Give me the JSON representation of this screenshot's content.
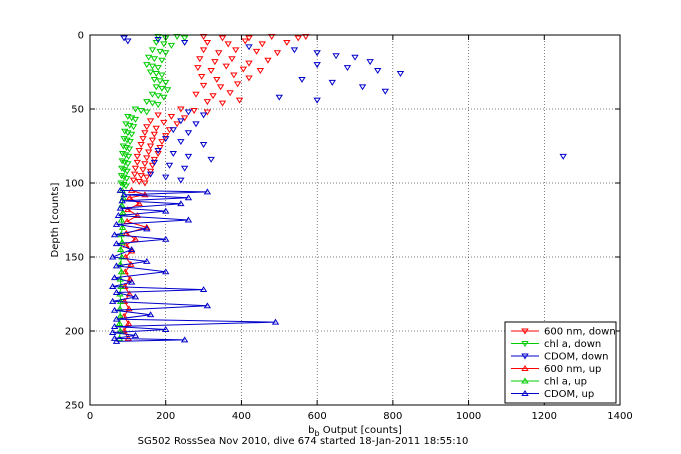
{
  "chart_data": {
    "type": "scatter",
    "title": "",
    "xlabel_main": "b",
    "xlabel_sub": "b",
    "xlabel_rest": " Output [counts]",
    "ylabel": "Depth [counts]",
    "caption": "SG502 RossSea Nov 2010, dive 674 started 18-Jan-2011 18:55:10",
    "xlim": [
      0,
      1400
    ],
    "ylim": [
      0,
      250
    ],
    "y_reversed": true,
    "grid": true,
    "legend_position": "bottom-right",
    "xticks": [
      0,
      200,
      400,
      600,
      800,
      1000,
      1200,
      1400
    ],
    "yticks": [
      0,
      50,
      100,
      150,
      200,
      250
    ],
    "series": [
      {
        "name": "600 nm, down",
        "color": "#ff0000",
        "marker": "triangle-down",
        "line": false,
        "points": [
          [
            300,
            1
          ],
          [
            350,
            2
          ],
          [
            420,
            2
          ],
          [
            480,
            1
          ],
          [
            550,
            2
          ],
          [
            570,
            1
          ],
          [
            310,
            5
          ],
          [
            365,
            6
          ],
          [
            410,
            4
          ],
          [
            455,
            6
          ],
          [
            520,
            5
          ],
          [
            300,
            10
          ],
          [
            340,
            12
          ],
          [
            385,
            10
          ],
          [
            440,
            11
          ],
          [
            495,
            12
          ],
          [
            290,
            16
          ],
          [
            330,
            18
          ],
          [
            375,
            16
          ],
          [
            420,
            19
          ],
          [
            470,
            17
          ],
          [
            285,
            22
          ],
          [
            320,
            24
          ],
          [
            360,
            21
          ],
          [
            405,
            23
          ],
          [
            450,
            24
          ],
          [
            295,
            28
          ],
          [
            335,
            30
          ],
          [
            380,
            27
          ],
          [
            420,
            29
          ],
          [
            300,
            34
          ],
          [
            345,
            35
          ],
          [
            390,
            33
          ],
          [
            280,
            40
          ],
          [
            325,
            41
          ],
          [
            370,
            39
          ],
          [
            310,
            45
          ],
          [
            350,
            46
          ],
          [
            395,
            44
          ],
          [
            240,
            50
          ],
          [
            275,
            51
          ],
          [
            310,
            52
          ],
          [
            180,
            54
          ],
          [
            215,
            55
          ],
          [
            250,
            56
          ],
          [
            160,
            58
          ],
          [
            195,
            59
          ],
          [
            230,
            60
          ],
          [
            150,
            62
          ],
          [
            175,
            63
          ],
          [
            210,
            64
          ],
          [
            145,
            66
          ],
          [
            170,
            67
          ],
          [
            200,
            68
          ],
          [
            140,
            70
          ],
          [
            165,
            71
          ],
          [
            190,
            72
          ],
          [
            135,
            74
          ],
          [
            160,
            75
          ],
          [
            185,
            76
          ],
          [
            130,
            78
          ],
          [
            155,
            79
          ],
          [
            180,
            80
          ],
          [
            125,
            82
          ],
          [
            150,
            83
          ],
          [
            170,
            84
          ],
          [
            125,
            86
          ],
          [
            145,
            87
          ],
          [
            165,
            88
          ],
          [
            120,
            90
          ],
          [
            140,
            91
          ],
          [
            160,
            92
          ],
          [
            118,
            94
          ],
          [
            135,
            95
          ],
          [
            150,
            96
          ],
          [
            115,
            98
          ],
          [
            130,
            99
          ],
          [
            145,
            100
          ]
        ]
      },
      {
        "name": "chl a, down",
        "color": "#00cc00",
        "marker": "triangle-down",
        "line": false,
        "points": [
          [
            180,
            1
          ],
          [
            200,
            2
          ],
          [
            230,
            1
          ],
          [
            250,
            2
          ],
          [
            175,
            5
          ],
          [
            195,
            6
          ],
          [
            215,
            7
          ],
          [
            165,
            10
          ],
          [
            185,
            11
          ],
          [
            200,
            12
          ],
          [
            155,
            15
          ],
          [
            170,
            16
          ],
          [
            190,
            17
          ],
          [
            150,
            20
          ],
          [
            165,
            21
          ],
          [
            180,
            22
          ],
          [
            160,
            25
          ],
          [
            175,
            26
          ],
          [
            190,
            27
          ],
          [
            170,
            30
          ],
          [
            185,
            31
          ],
          [
            200,
            32
          ],
          [
            175,
            35
          ],
          [
            190,
            36
          ],
          [
            205,
            37
          ],
          [
            165,
            40
          ],
          [
            180,
            41
          ],
          [
            195,
            42
          ],
          [
            150,
            45
          ],
          [
            165,
            46
          ],
          [
            180,
            47
          ],
          [
            120,
            50
          ],
          [
            135,
            51
          ],
          [
            150,
            52
          ],
          [
            100,
            55
          ],
          [
            110,
            56
          ],
          [
            120,
            57
          ],
          [
            95,
            60
          ],
          [
            105,
            61
          ],
          [
            115,
            62
          ],
          [
            92,
            65
          ],
          [
            100,
            66
          ],
          [
            110,
            67
          ],
          [
            90,
            70
          ],
          [
            98,
            71
          ],
          [
            106,
            72
          ],
          [
            88,
            75
          ],
          [
            96,
            76
          ],
          [
            104,
            77
          ],
          [
            86,
            80
          ],
          [
            94,
            81
          ],
          [
            102,
            82
          ],
          [
            85,
            85
          ],
          [
            92,
            86
          ],
          [
            100,
            87
          ],
          [
            84,
            90
          ],
          [
            91,
            91
          ],
          [
            98,
            92
          ],
          [
            83,
            95
          ],
          [
            90,
            96
          ],
          [
            97,
            97
          ],
          [
            82,
            100
          ],
          [
            89,
            101
          ],
          [
            95,
            102
          ]
        ]
      },
      {
        "name": "CDOM, down",
        "color": "#0000cc",
        "marker": "triangle-down",
        "line": false,
        "points": [
          [
            90,
            2
          ],
          [
            100,
            4
          ],
          [
            180,
            3
          ],
          [
            250,
            5
          ],
          [
            420,
            8
          ],
          [
            540,
            10
          ],
          [
            600,
            12
          ],
          [
            650,
            14
          ],
          [
            700,
            15
          ],
          [
            740,
            18
          ],
          [
            600,
            20
          ],
          [
            680,
            22
          ],
          [
            760,
            24
          ],
          [
            820,
            26
          ],
          [
            560,
            30
          ],
          [
            640,
            32
          ],
          [
            720,
            35
          ],
          [
            780,
            38
          ],
          [
            500,
            42
          ],
          [
            600,
            44
          ],
          [
            260,
            52
          ],
          [
            300,
            54
          ],
          [
            240,
            58
          ],
          [
            280,
            60
          ],
          [
            220,
            64
          ],
          [
            260,
            66
          ],
          [
            200,
            70
          ],
          [
            240,
            72
          ],
          [
            300,
            74
          ],
          [
            180,
            78
          ],
          [
            220,
            80
          ],
          [
            260,
            82
          ],
          [
            320,
            84
          ],
          [
            170,
            86
          ],
          [
            210,
            88
          ],
          [
            250,
            90
          ],
          [
            1250,
            82
          ],
          [
            160,
            94
          ],
          [
            200,
            96
          ],
          [
            240,
            98
          ]
        ]
      },
      {
        "name": "600 nm, up",
        "color": "#ff0000",
        "marker": "triangle-up",
        "line": true,
        "points": [
          [
            110,
            105
          ],
          [
            145,
            108
          ],
          [
            105,
            110
          ],
          [
            130,
            114
          ],
          [
            100,
            118
          ],
          [
            125,
            122
          ],
          [
            98,
            126
          ],
          [
            150,
            130
          ],
          [
            96,
            134
          ],
          [
            120,
            138
          ],
          [
            95,
            142
          ],
          [
            110,
            146
          ],
          [
            94,
            150
          ],
          [
            108,
            155
          ],
          [
            93,
            160
          ],
          [
            106,
            165
          ],
          [
            92,
            170
          ],
          [
            104,
            175
          ],
          [
            91,
            180
          ],
          [
            103,
            185
          ],
          [
            90,
            190
          ],
          [
            102,
            195
          ],
          [
            90,
            200
          ],
          [
            101,
            205
          ]
        ]
      },
      {
        "name": "chl a, up",
        "color": "#00cc00",
        "marker": "triangle-up",
        "line": true,
        "points": [
          [
            85,
            105
          ],
          [
            88,
            110
          ],
          [
            84,
            115
          ],
          [
            87,
            120
          ],
          [
            83,
            125
          ],
          [
            86,
            130
          ],
          [
            82,
            135
          ],
          [
            85,
            140
          ],
          [
            81,
            145
          ],
          [
            84,
            150
          ],
          [
            80,
            155
          ],
          [
            83,
            160
          ],
          [
            80,
            165
          ],
          [
            82,
            170
          ],
          [
            79,
            175
          ],
          [
            81,
            180
          ],
          [
            79,
            185
          ],
          [
            80,
            190
          ],
          [
            78,
            195
          ],
          [
            80,
            200
          ],
          [
            78,
            205
          ]
        ]
      },
      {
        "name": "CDOM, up",
        "color": "#0000cc",
        "marker": "triangle-up",
        "line": true,
        "points": [
          [
            80,
            105
          ],
          [
            310,
            106
          ],
          [
            90,
            108
          ],
          [
            260,
            110
          ],
          [
            85,
            112
          ],
          [
            240,
            114
          ],
          [
            80,
            117
          ],
          [
            200,
            119
          ],
          [
            75,
            122
          ],
          [
            260,
            125
          ],
          [
            70,
            128
          ],
          [
            150,
            131
          ],
          [
            65,
            135
          ],
          [
            200,
            138
          ],
          [
            70,
            141
          ],
          [
            110,
            145
          ],
          [
            60,
            150
          ],
          [
            150,
            153
          ],
          [
            70,
            156
          ],
          [
            200,
            160
          ],
          [
            65,
            164
          ],
          [
            110,
            167
          ],
          [
            60,
            170
          ],
          [
            300,
            172
          ],
          [
            70,
            174
          ],
          [
            120,
            177
          ],
          [
            60,
            180
          ],
          [
            310,
            183
          ],
          [
            65,
            186
          ],
          [
            160,
            189
          ],
          [
            70,
            192
          ],
          [
            490,
            194
          ],
          [
            65,
            197
          ],
          [
            200,
            199
          ],
          [
            60,
            201
          ],
          [
            120,
            203
          ],
          [
            65,
            205
          ],
          [
            250,
            206
          ],
          [
            70,
            207
          ]
        ]
      }
    ]
  }
}
